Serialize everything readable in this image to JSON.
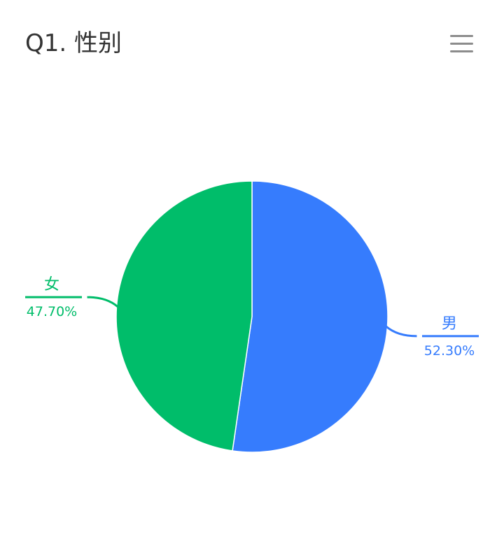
{
  "title": "Q1. 性别",
  "menu_icon": "hamburger-menu-icon",
  "chart_data": {
    "type": "pie",
    "title": "Q1. 性别",
    "categories": [
      "男",
      "女"
    ],
    "values": [
      52.3,
      47.7
    ],
    "value_labels": [
      "52.30%",
      "47.70%"
    ],
    "colors": [
      "#367cfd",
      "#00bd6a"
    ],
    "start_angle": "12 o'clock",
    "direction": "clockwise"
  }
}
